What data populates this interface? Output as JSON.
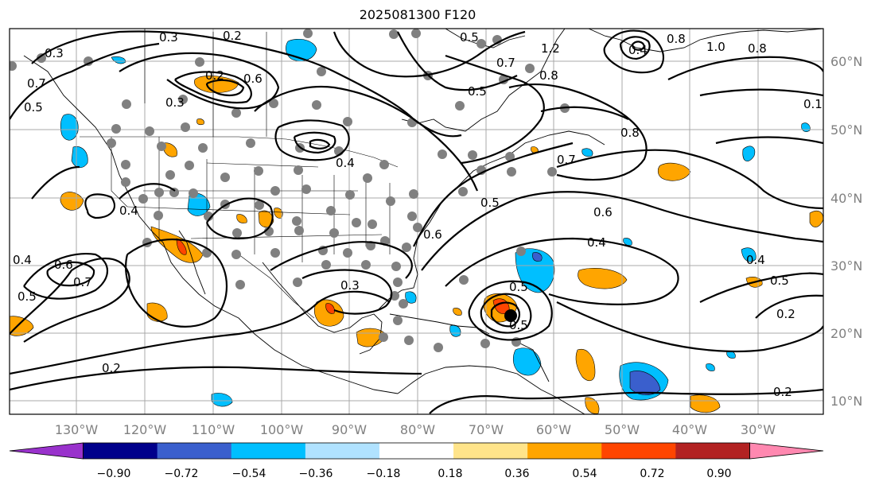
{
  "title": "2025081300 F120",
  "lon_labels": [
    "130°W",
    "120°W",
    "110°W",
    "100°W",
    "90°W",
    "80°W",
    "70°W",
    "60°W",
    "50°W",
    "40°W",
    "30°W"
  ],
  "lat_labels": [
    "60°N",
    "50°N",
    "40°N",
    "30°N",
    "20°N",
    "10°N"
  ],
  "colorbar": {
    "ticks": [
      "−0.90",
      "−0.72",
      "−0.54",
      "−0.36",
      "−0.18",
      "0.18",
      "0.36",
      "0.54",
      "0.72",
      "0.90"
    ],
    "colors": [
      "#9932cc",
      "#00008b",
      "#3a5fcd",
      "#00bfff",
      "#b0e2ff",
      "#ffffff",
      "#ffe48a",
      "#ffa500",
      "#ff4500",
      "#b22222",
      "#ff88b0"
    ]
  },
  "contour_labels": [
    "0.3",
    "0.2",
    "0.5",
    "0.3",
    "0.2",
    "0.6",
    "0.7",
    "0.3",
    "0.5",
    "0.4",
    "0.6",
    "0.5",
    "0.7",
    "0.3",
    "0.2",
    "0.4",
    "0.6",
    "0.5",
    "0.4",
    "0.5",
    "0.8",
    "0.7",
    "0.8",
    "0.8",
    "1.0",
    "0.4",
    "1.2",
    "0.8",
    "0.7",
    "0.5",
    "0.6",
    "0.4",
    "0.4",
    "0.5",
    "0.2",
    "0.2",
    "0.1",
    "0.5"
  ]
}
